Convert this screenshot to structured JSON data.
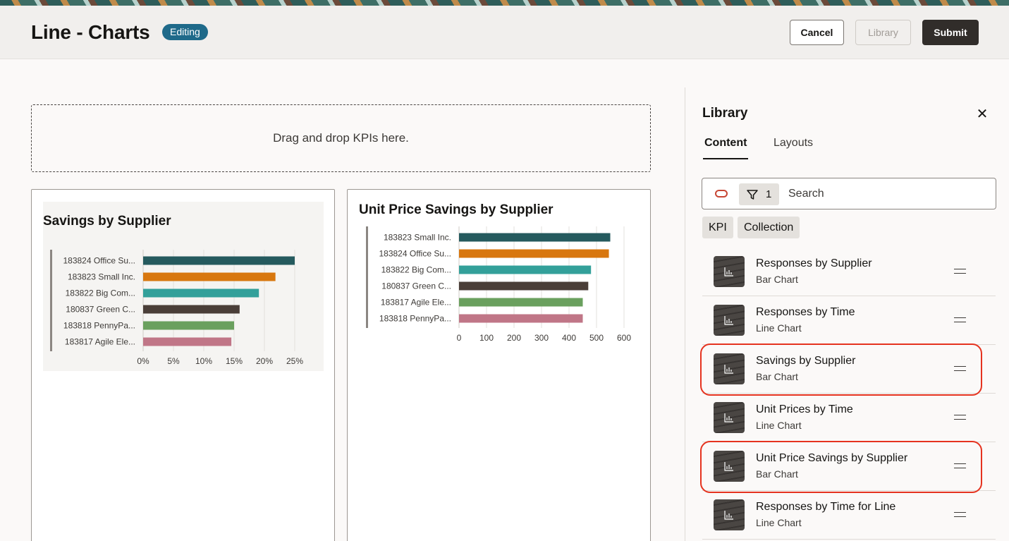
{
  "header": {
    "title": "Line - Charts",
    "badge": "Editing",
    "buttons": {
      "cancel": "Cancel",
      "library": "Library",
      "submit": "Submit"
    }
  },
  "dropzone": {
    "text": "Drag and drop KPIs here."
  },
  "library": {
    "title": "Library",
    "tabs": [
      "Content",
      "Layouts"
    ],
    "search": {
      "filter_count": "1",
      "placeholder": "Search"
    },
    "chips": [
      "KPI",
      "Collection"
    ],
    "items": [
      {
        "name": "Responses by Supplier",
        "type": "Bar Chart",
        "highlighted": false
      },
      {
        "name": "Responses by Time",
        "type": "Line Chart",
        "highlighted": false
      },
      {
        "name": "Savings by Supplier",
        "type": "Bar Chart",
        "highlighted": true
      },
      {
        "name": "Unit Prices by Time",
        "type": "Line Chart",
        "highlighted": false
      },
      {
        "name": "Unit Price Savings by Supplier",
        "type": "Bar Chart",
        "highlighted": true
      },
      {
        "name": "Responses by Time for Line",
        "type": "Line Chart",
        "highlighted": false
      }
    ]
  },
  "chart_data": [
    {
      "type": "bar",
      "orientation": "horizontal",
      "title": "Savings by Supplier",
      "categories": [
        "183824 Office Su...",
        "183823 Small Inc.",
        "183822 Big Com...",
        "180837 Green C...",
        "183818 PennyPa...",
        "183817 Agile Ele..."
      ],
      "values": [
        27.5,
        24,
        21,
        17.5,
        16.5,
        16
      ],
      "colors": [
        "#255a5e",
        "#d8770f",
        "#33a09a",
        "#4a3e38",
        "#6aa05e",
        "#c07687"
      ],
      "xticks": [
        "0%",
        "5%",
        "10%",
        "15%",
        "20%",
        "25%"
      ],
      "xlim": [
        0,
        27.5
      ],
      "grid": true
    },
    {
      "type": "bar",
      "orientation": "horizontal",
      "title": "Unit Price Savings by Supplier",
      "categories": [
        "183823 Small Inc.",
        "183824 Office Su...",
        "183822 Big Com...",
        "180837 Green C...",
        "183817 Agile Ele...",
        "183818 PennyPa..."
      ],
      "values": [
        550,
        545,
        480,
        470,
        450,
        450
      ],
      "colors": [
        "#255a5e",
        "#d8770f",
        "#33a09a",
        "#4a3e38",
        "#6aa05e",
        "#c07687"
      ],
      "xticks": [
        "0",
        "100",
        "200",
        "300",
        "400",
        "500",
        "600"
      ],
      "xlim": [
        0,
        600
      ],
      "grid": true
    }
  ]
}
